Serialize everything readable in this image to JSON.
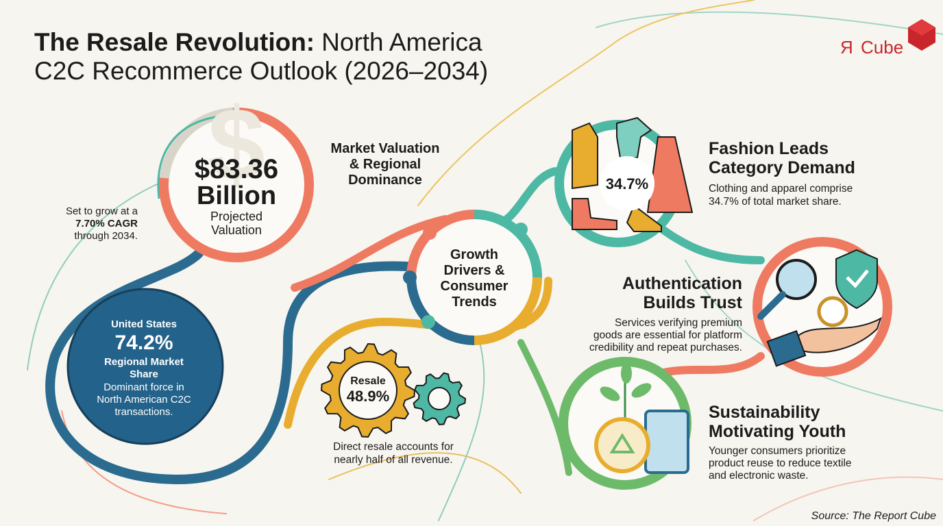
{
  "header": {
    "title_bold": "The Resale Revolution:",
    "title_rest": "North America",
    "title_line2": "C2C Recommerce Outlook (2026–2034)"
  },
  "logo": {
    "mark": "Я",
    "text": "Cube"
  },
  "valuation": {
    "amount": "$83.36",
    "unit": "Billion",
    "caption": [
      "Projected",
      "Valuation"
    ]
  },
  "growth_note": [
    "Set to grow at a",
    "7.70% CAGR",
    "through 2034."
  ],
  "section_label": [
    "Market Valuation",
    "& Regional",
    "Dominance"
  ],
  "regional": {
    "country": "United States",
    "share": "74.2%",
    "label": [
      "Regional Market",
      "Share"
    ],
    "description": [
      "Dominant force in",
      "North American C2C",
      "transactions."
    ]
  },
  "hub": [
    "Growth",
    "Drivers &",
    "Consumer",
    "Trends"
  ],
  "resale": {
    "label": "Resale",
    "share": "48.9%",
    "description": [
      "Direct resale accounts for",
      "nearly half of all revenue."
    ]
  },
  "fashion": {
    "share": "34.7%",
    "title": [
      "Fashion Leads",
      "Category Demand"
    ],
    "description": [
      "Clothing and apparel comprise",
      "34.7% of total market share."
    ]
  },
  "authentication": {
    "title": [
      "Authentication",
      "Builds Trust"
    ],
    "description": [
      "Services verifying premium",
      "goods are essential for platform",
      "credibility and repeat purchases."
    ]
  },
  "sustainability": {
    "title": [
      "Sustainability",
      "Motivating Youth"
    ],
    "description": [
      "Younger consumers prioritize",
      "product reuse to reduce textile",
      "and electronic waste."
    ]
  },
  "source": "Source: The Report Cube"
}
